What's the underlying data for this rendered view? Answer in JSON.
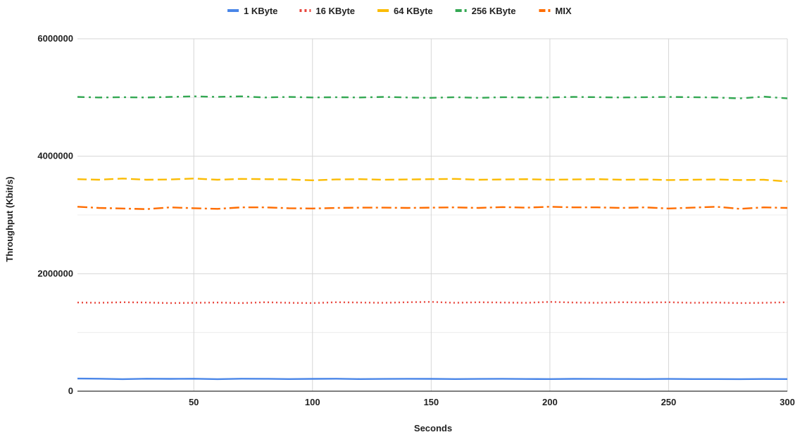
{
  "chart_data": {
    "type": "line",
    "title": "",
    "xlabel": "Seconds",
    "ylabel": "Throughput (Kbit/s)",
    "xlim": [
      1,
      300
    ],
    "ylim": [
      0,
      6000000
    ],
    "x_ticks": [
      50,
      100,
      150,
      200,
      250,
      300
    ],
    "y_ticks": [
      0,
      2000000,
      4000000,
      6000000
    ],
    "x_tick_labels": [
      "50",
      "100",
      "150",
      "200",
      "250",
      "300"
    ],
    "y_tick_labels": [
      "0",
      "2000000",
      "4000000",
      "6000000"
    ],
    "grid": "vertical lines at labeled x ticks; horizontal lines at every 1000000",
    "legend_position": "top",
    "x": [
      1,
      10,
      20,
      30,
      40,
      50,
      60,
      70,
      80,
      90,
      100,
      110,
      120,
      130,
      140,
      150,
      160,
      170,
      180,
      190,
      200,
      210,
      220,
      230,
      240,
      250,
      260,
      270,
      280,
      290,
      300
    ],
    "series": [
      {
        "name": "1 KByte",
        "color": "#4a86e8",
        "dash": "solid",
        "values": [
          215000,
          212000,
          205000,
          213000,
          210000,
          212000,
          205000,
          213000,
          211000,
          207000,
          210000,
          212000,
          206000,
          209000,
          211000,
          210000,
          206000,
          209000,
          211000,
          208000,
          206000,
          210000,
          209000,
          208000,
          206000,
          209000,
          207000,
          206000,
          205000,
          208000,
          207000
        ]
      },
      {
        "name": "16 KByte",
        "color": "#e8453c",
        "dash": "dotted",
        "values": [
          1510000,
          1505000,
          1515000,
          1510000,
          1500000,
          1505000,
          1510000,
          1500000,
          1515000,
          1505000,
          1500000,
          1515000,
          1510000,
          1505000,
          1515000,
          1520000,
          1505000,
          1515000,
          1510000,
          1505000,
          1520000,
          1510000,
          1505000,
          1515000,
          1510000,
          1515000,
          1505000,
          1510000,
          1500000,
          1505000,
          1515000
        ]
      },
      {
        "name": "64 KByte",
        "color": "#fbbc04",
        "dash": "dashed",
        "values": [
          3610000,
          3600000,
          3620000,
          3600000,
          3605000,
          3620000,
          3600000,
          3615000,
          3610000,
          3605000,
          3590000,
          3605000,
          3610000,
          3600000,
          3605000,
          3610000,
          3615000,
          3600000,
          3605000,
          3610000,
          3600000,
          3605000,
          3610000,
          3600000,
          3605000,
          3595000,
          3600000,
          3605000,
          3595000,
          3600000,
          3570000
        ]
      },
      {
        "name": "256 KByte",
        "color": "#34a853",
        "dash": "dash-dot",
        "values": [
          5010000,
          5000000,
          5005000,
          5000000,
          5010000,
          5020000,
          5010000,
          5020000,
          5000000,
          5010000,
          5000000,
          5005000,
          5000000,
          5010000,
          5000000,
          4995000,
          5005000,
          4995000,
          5005000,
          5000000,
          5000000,
          5010000,
          5005000,
          5000000,
          5005000,
          5010000,
          5005000,
          5000000,
          4985000,
          5015000,
          4985000
        ]
      },
      {
        "name": "MIX",
        "color": "#ff6d01",
        "dash": "long-dash-dot",
        "values": [
          3140000,
          3120000,
          3110000,
          3100000,
          3130000,
          3115000,
          3105000,
          3130000,
          3130000,
          3115000,
          3110000,
          3120000,
          3125000,
          3125000,
          3120000,
          3125000,
          3130000,
          3120000,
          3135000,
          3125000,
          3140000,
          3130000,
          3130000,
          3120000,
          3130000,
          3110000,
          3125000,
          3140000,
          3105000,
          3130000,
          3120000
        ]
      }
    ]
  }
}
